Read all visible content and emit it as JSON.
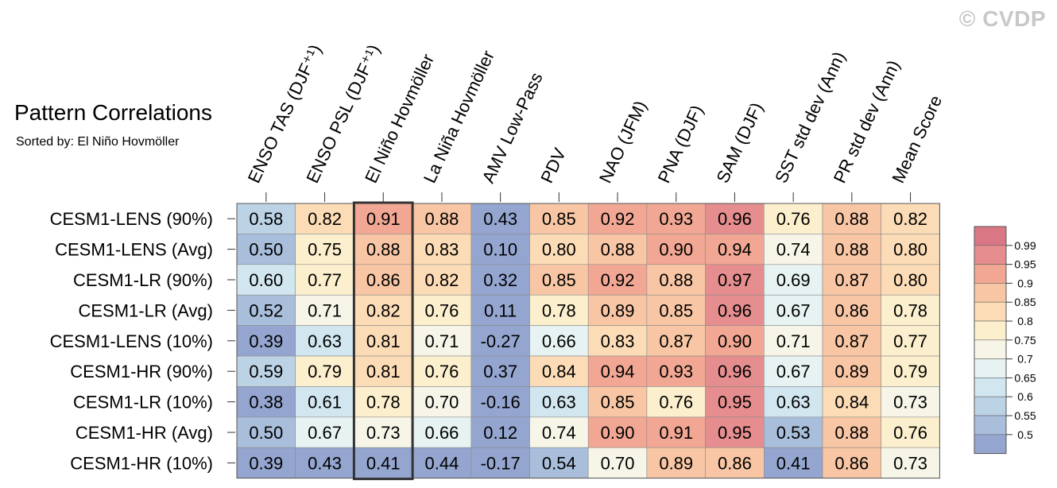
{
  "chart_data": {
    "type": "heatmap",
    "title": "Pattern Correlations",
    "subtitle": "Sorted by: El Niño Hovmöller",
    "watermark": "© CVDP",
    "columns": [
      "ENSO TAS (DJF⁺¹)",
      "ENSO PSL (DJF⁺¹)",
      "El Niño Hovmöller",
      "La Niña Hovmöller",
      "AMV Low-Pass",
      "PDV",
      "NAO (JFM)",
      "PNA (DJF)",
      "SAM (DJF)",
      "SST std dev (Ann)",
      "PR std dev (Ann)",
      "Mean Score"
    ],
    "rows": [
      "CESM1-LENS (90%)",
      "CESM1-LENS (Avg)",
      "CESM1-LR (90%)",
      "CESM1-LR (Avg)",
      "CESM1-LENS (10%)",
      "CESM1-HR (90%)",
      "CESM1-LR (10%)",
      "CESM1-HR (Avg)",
      "CESM1-HR (10%)"
    ],
    "values": [
      [
        0.58,
        0.82,
        0.91,
        0.88,
        0.43,
        0.85,
        0.92,
        0.93,
        0.96,
        0.76,
        0.88,
        0.82
      ],
      [
        0.5,
        0.75,
        0.88,
        0.83,
        0.1,
        0.8,
        0.88,
        0.9,
        0.94,
        0.74,
        0.88,
        0.8
      ],
      [
        0.6,
        0.77,
        0.86,
        0.82,
        0.32,
        0.85,
        0.92,
        0.88,
        0.97,
        0.69,
        0.87,
        0.8
      ],
      [
        0.52,
        0.71,
        0.82,
        0.76,
        0.11,
        0.78,
        0.89,
        0.85,
        0.96,
        0.67,
        0.86,
        0.78
      ],
      [
        0.39,
        0.63,
        0.81,
        0.71,
        -0.27,
        0.66,
        0.83,
        0.87,
        0.9,
        0.71,
        0.87,
        0.77
      ],
      [
        0.59,
        0.79,
        0.81,
        0.76,
        0.37,
        0.84,
        0.94,
        0.93,
        0.96,
        0.67,
        0.89,
        0.79
      ],
      [
        0.38,
        0.61,
        0.78,
        0.7,
        -0.16,
        0.63,
        0.85,
        0.76,
        0.95,
        0.63,
        0.84,
        0.73
      ],
      [
        0.5,
        0.67,
        0.73,
        0.66,
        0.12,
        0.74,
        0.9,
        0.91,
        0.95,
        0.53,
        0.88,
        0.76
      ],
      [
        0.39,
        0.43,
        0.41,
        0.44,
        -0.17,
        0.54,
        0.7,
        0.89,
        0.86,
        0.41,
        0.86,
        0.73
      ]
    ],
    "highlight_column": "El Niño Hovmöller",
    "colorbar": {
      "levels": [
        0.5,
        0.55,
        0.6,
        0.65,
        0.7,
        0.75,
        0.8,
        0.85,
        0.9,
        0.95,
        0.99
      ],
      "labels": [
        "0.5",
        "0.55",
        "0.6",
        "0.65",
        "0.7",
        "0.75",
        "0.8",
        "0.85",
        "0.9",
        "0.95",
        "0.99"
      ],
      "colors": [
        "#94a5cf",
        "#a9bedb",
        "#bcd3e6",
        "#d1e6ef",
        "#e7f2f2",
        "#f6f5e8",
        "#fcefcd",
        "#fcdcb6",
        "#f8c6a4",
        "#f1a793",
        "#e58d8f",
        "#d97785"
      ]
    }
  }
}
